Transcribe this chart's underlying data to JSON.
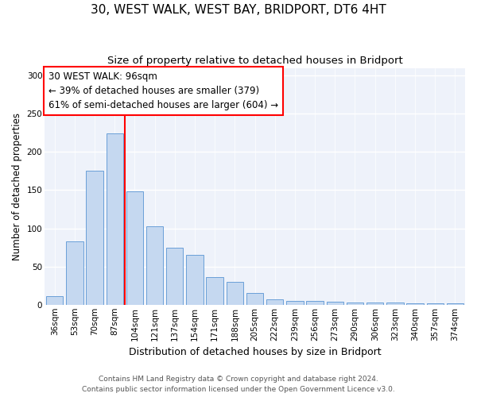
{
  "title1": "30, WEST WALK, WEST BAY, BRIDPORT, DT6 4HT",
  "title2": "Size of property relative to detached houses in Bridport",
  "xlabel": "Distribution of detached houses by size in Bridport",
  "ylabel": "Number of detached properties",
  "categories": [
    "36sqm",
    "53sqm",
    "70sqm",
    "87sqm",
    "104sqm",
    "121sqm",
    "137sqm",
    "154sqm",
    "171sqm",
    "188sqm",
    "205sqm",
    "222sqm",
    "239sqm",
    "256sqm",
    "273sqm",
    "290sqm",
    "306sqm",
    "323sqm",
    "340sqm",
    "357sqm",
    "374sqm"
  ],
  "values": [
    11,
    83,
    175,
    224,
    148,
    103,
    75,
    65,
    36,
    30,
    15,
    7,
    5,
    5,
    4,
    3,
    3,
    3,
    2,
    2,
    2
  ],
  "bar_color": "#c5d8f0",
  "bar_edge_color": "#6a9fd8",
  "red_line_x": 3.5,
  "annotation_line1": "30 WEST WALK: 96sqm",
  "annotation_line2": "← 39% of detached houses are smaller (379)",
  "annotation_line3": "61% of semi-detached houses are larger (604) →",
  "ylim": [
    0,
    310
  ],
  "yticks": [
    0,
    50,
    100,
    150,
    200,
    250,
    300
  ],
  "footer1": "Contains HM Land Registry data © Crown copyright and database right 2024.",
  "footer2": "Contains public sector information licensed under the Open Government Licence v3.0.",
  "plot_bg_color": "#eef2fa",
  "title1_fontsize": 11,
  "title2_fontsize": 9.5,
  "annotation_fontsize": 8.5,
  "xlabel_fontsize": 9,
  "ylabel_fontsize": 8.5,
  "tick_fontsize": 7.5,
  "footer_fontsize": 6.5
}
